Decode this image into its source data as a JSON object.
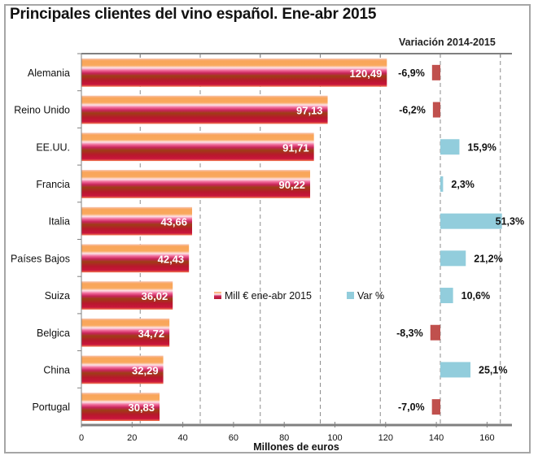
{
  "chart_data": {
    "type": "bar",
    "orientation": "horizontal",
    "title": "Principales clientes del vino español. Ene-abr 2015",
    "subtitle": "Variación 2014-2015",
    "xlabel": "Millones de euros",
    "xlim": [
      0,
      170
    ],
    "xticks": [
      "0",
      "20",
      "40",
      "60",
      "80",
      "100",
      "120",
      "140",
      "160"
    ],
    "xtick_values": [
      0,
      20,
      40,
      60,
      80,
      100,
      120,
      140,
      160
    ],
    "grid": true,
    "legend_position": "center",
    "categories": [
      "Alemania",
      "Reino Unido",
      "EE.UU.",
      "Francia",
      "Italia",
      "Países Bajos",
      "Suiza",
      "Belgica",
      "China",
      "Portugal"
    ],
    "series": [
      {
        "name": "Mill € ene-abr 2015",
        "values": [
          120.49,
          97.13,
          91.71,
          90.22,
          43.66,
          42.43,
          36.02,
          34.72,
          32.29,
          30.83
        ],
        "labels": [
          "120,49",
          "97,13",
          "91,71",
          "90,22",
          "43,66",
          "42,43",
          "36,02",
          "34,72",
          "32,29",
          "30,83"
        ],
        "color": "#c0173a"
      },
      {
        "name": "Var %",
        "axis": "secondary",
        "values": [
          -6.9,
          -6.2,
          15.9,
          2.3,
          51.3,
          21.2,
          10.6,
          -8.3,
          25.1,
          -7.0
        ],
        "labels": [
          "-6,9%",
          "-6,2%",
          "15,9%",
          "2,3%",
          "51,3%",
          "21,2%",
          "10,6%",
          "-8,3%",
          "25,1%",
          "-7,0%"
        ],
        "color_positive": "#92cddc",
        "color_negative": "#c0504d"
      }
    ]
  }
}
